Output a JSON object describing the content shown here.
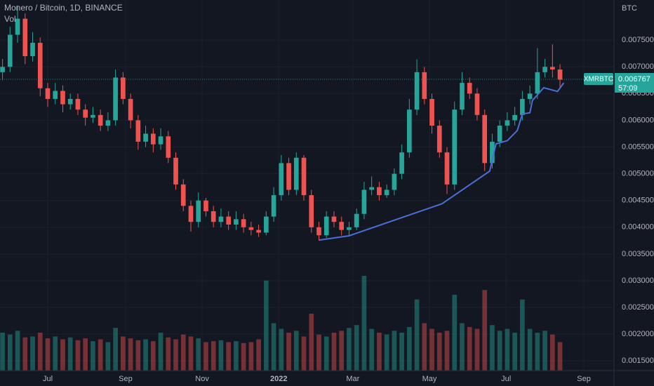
{
  "chart_data": {
    "type": "candlestick",
    "title": "Monero / Bitcoin, 1D, BINANCE",
    "volume_label": "Vol",
    "axis_unit": "BTC",
    "symbol": "XMRBTC",
    "last_price": 0.006767,
    "countdown": "57:09",
    "up_color": "#26a69a",
    "down_color": "#ef5350",
    "trend_color": "#4a6fd6",
    "grid": true,
    "xlim": [
      -38,
      451
    ],
    "ylim": [
      0.00132,
      0.00825
    ],
    "vlim": [
      0,
      100
    ],
    "xticks": [
      {
        "value": 0,
        "label": "Jul"
      },
      {
        "value": 62,
        "label": "Sep"
      },
      {
        "value": 123,
        "label": "Nov"
      },
      {
        "value": 184,
        "label": "2022"
      },
      {
        "value": 243,
        "label": "Mar"
      },
      {
        "value": 304,
        "label": "May"
      },
      {
        "value": 365,
        "label": "Jul"
      },
      {
        "value": 427,
        "label": "Sep"
      }
    ],
    "yticks": [
      {
        "value": 0.0015,
        "label": "0.001500"
      },
      {
        "value": 0.002,
        "label": "0.002000"
      },
      {
        "value": 0.0025,
        "label": "0.002500"
      },
      {
        "value": 0.003,
        "label": "0.003000"
      },
      {
        "value": 0.0035,
        "label": "0.003500"
      },
      {
        "value": 0.004,
        "label": "0.004000"
      },
      {
        "value": 0.0045,
        "label": "0.004500"
      },
      {
        "value": 0.005,
        "label": "0.005000"
      },
      {
        "value": 0.0055,
        "label": "0.005500"
      },
      {
        "value": 0.006,
        "label": "0.006000"
      },
      {
        "value": 0.0065,
        "label": "0.006500"
      },
      {
        "value": 0.007,
        "label": "0.007000"
      },
      {
        "value": 0.0075,
        "label": "0.007500"
      }
    ],
    "x": [
      -36,
      -30,
      -24,
      -18,
      -12,
      -6,
      0,
      6,
      12,
      18,
      24,
      30,
      36,
      42,
      48,
      54,
      60,
      66,
      72,
      78,
      84,
      90,
      96,
      102,
      108,
      114,
      120,
      126,
      132,
      138,
      144,
      150,
      156,
      162,
      168,
      174,
      180,
      186,
      192,
      198,
      204,
      210,
      216,
      222,
      228,
      234,
      240,
      246,
      252,
      258,
      264,
      270,
      276,
      282,
      288,
      294,
      300,
      306,
      312,
      318,
      324,
      330,
      336,
      342,
      348,
      354,
      360,
      366,
      372,
      378,
      384,
      390,
      396,
      402,
      408
    ],
    "open": [
      0.0069,
      0.007,
      0.0076,
      0.0079,
      0.0072,
      0.00745,
      0.0066,
      0.0064,
      0.00655,
      0.0063,
      0.0064,
      0.0062,
      0.00605,
      0.0061,
      0.0059,
      0.006,
      0.0068,
      0.0064,
      0.006,
      0.0056,
      0.00575,
      0.00555,
      0.0057,
      0.0053,
      0.0048,
      0.0044,
      0.0041,
      0.0045,
      0.0043,
      0.0041,
      0.0042,
      0.00405,
      0.00415,
      0.004,
      0.00395,
      0.0039,
      0.0042,
      0.0046,
      0.0052,
      0.0047,
      0.0053,
      0.0046,
      0.004,
      0.00385,
      0.0042,
      0.0041,
      0.00395,
      0.004,
      0.00425,
      0.0047,
      0.00475,
      0.0046,
      0.0047,
      0.005,
      0.0054,
      0.0062,
      0.0069,
      0.0064,
      0.0059,
      0.0054,
      0.0048,
      0.0062,
      0.0067,
      0.0065,
      0.0061,
      0.0052,
      0.0056,
      0.0059,
      0.006,
      0.0061,
      0.0064,
      0.0065,
      0.0069,
      0.007,
      0.00695
    ],
    "high": [
      0.00715,
      0.00775,
      0.00815,
      0.008,
      0.00765,
      0.00755,
      0.0067,
      0.0067,
      0.00665,
      0.0065,
      0.0065,
      0.0063,
      0.00625,
      0.0062,
      0.00615,
      0.00695,
      0.0069,
      0.0065,
      0.0061,
      0.0059,
      0.00585,
      0.00585,
      0.0058,
      0.0054,
      0.0049,
      0.0045,
      0.00465,
      0.00455,
      0.0044,
      0.00435,
      0.0043,
      0.0043,
      0.00425,
      0.0041,
      0.00405,
      0.0043,
      0.00475,
      0.00535,
      0.0053,
      0.0054,
      0.00535,
      0.0047,
      0.0041,
      0.0043,
      0.0043,
      0.0042,
      0.0041,
      0.00435,
      0.00485,
      0.00495,
      0.00485,
      0.0048,
      0.0051,
      0.00555,
      0.0064,
      0.00714,
      0.007,
      0.0065,
      0.006,
      0.0055,
      0.00635,
      0.0069,
      0.0068,
      0.0066,
      0.0062,
      0.00575,
      0.006,
      0.00615,
      0.00625,
      0.00655,
      0.00665,
      0.00735,
      0.00715,
      0.00742,
      0.00705
    ],
    "low": [
      0.00675,
      0.0069,
      0.00745,
      0.00705,
      0.0071,
      0.00645,
      0.00625,
      0.0063,
      0.00615,
      0.0062,
      0.0061,
      0.0059,
      0.00595,
      0.0058,
      0.0058,
      0.0059,
      0.0063,
      0.00585,
      0.00545,
      0.0055,
      0.0054,
      0.00545,
      0.0052,
      0.0047,
      0.0043,
      0.00392,
      0.004,
      0.0042,
      0.004,
      0.004,
      0.00395,
      0.00395,
      0.0039,
      0.00385,
      0.00382,
      0.00385,
      0.0041,
      0.0045,
      0.0046,
      0.0046,
      0.0045,
      0.0039,
      0.00375,
      0.0038,
      0.004,
      0.00385,
      0.00385,
      0.00395,
      0.00415,
      0.0046,
      0.0045,
      0.00455,
      0.0046,
      0.0049,
      0.0053,
      0.0061,
      0.0063,
      0.00575,
      0.0053,
      0.00462,
      0.0047,
      0.0061,
      0.0064,
      0.006,
      0.00505,
      0.0051,
      0.0055,
      0.0058,
      0.0059,
      0.006,
      0.0063,
      0.0064,
      0.0068,
      0.0068,
      0.0066
    ],
    "close": [
      0.007,
      0.0076,
      0.0079,
      0.0072,
      0.00745,
      0.0066,
      0.0064,
      0.00655,
      0.0063,
      0.0064,
      0.0062,
      0.00605,
      0.0061,
      0.0059,
      0.006,
      0.0068,
      0.0064,
      0.006,
      0.0056,
      0.00575,
      0.00555,
      0.0057,
      0.0053,
      0.0048,
      0.0044,
      0.0041,
      0.0045,
      0.0043,
      0.0041,
      0.0042,
      0.00405,
      0.00415,
      0.004,
      0.00395,
      0.0039,
      0.0042,
      0.0046,
      0.0052,
      0.0047,
      0.0053,
      0.0046,
      0.004,
      0.00385,
      0.0042,
      0.0041,
      0.00395,
      0.004,
      0.00425,
      0.0047,
      0.00475,
      0.0046,
      0.0047,
      0.005,
      0.0054,
      0.0062,
      0.0069,
      0.0064,
      0.0059,
      0.0054,
      0.0048,
      0.0062,
      0.0067,
      0.0065,
      0.0061,
      0.0052,
      0.0056,
      0.0059,
      0.006,
      0.0061,
      0.0064,
      0.0065,
      0.0069,
      0.007,
      0.00695,
      0.00676
    ],
    "volume": [
      40,
      38,
      42,
      35,
      36,
      40,
      34,
      36,
      33,
      35,
      32,
      34,
      31,
      33,
      30,
      45,
      36,
      34,
      32,
      33,
      31,
      40,
      35,
      33,
      38,
      36,
      34,
      30,
      31,
      32,
      30,
      31,
      29,
      30,
      33,
      95,
      50,
      44,
      40,
      42,
      36,
      60,
      38,
      36,
      40,
      42,
      45,
      48,
      100,
      44,
      40,
      38,
      42,
      40,
      46,
      75,
      50,
      44,
      40,
      42,
      80,
      50,
      46,
      44,
      85,
      48,
      42,
      44,
      40,
      75,
      44,
      40,
      42,
      38,
      30
    ],
    "trendline": {
      "x": [
        216,
        240,
        314,
        352,
        357,
        366,
        374,
        378,
        384,
        386,
        395,
        406,
        411
      ],
      "y": [
        0.00376,
        0.00384,
        0.00444,
        0.00505,
        0.00556,
        0.00562,
        0.00581,
        0.00612,
        0.00614,
        0.00637,
        0.00661,
        0.00654,
        0.0067
      ]
    }
  }
}
